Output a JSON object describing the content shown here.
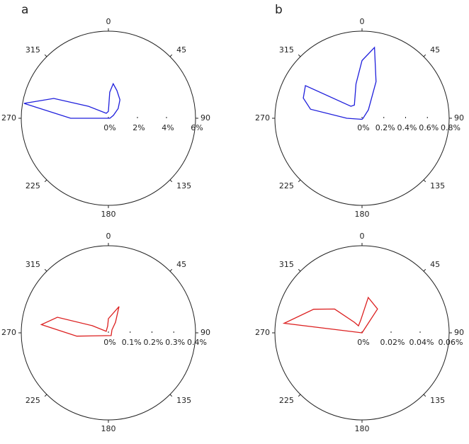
{
  "chart_data": [
    {
      "type": "polar",
      "panel_label": "a",
      "color": "#1f1fdc",
      "theta": [
        0,
        3,
        8,
        17,
        32,
        45,
        60,
        90,
        270,
        280,
        290,
        301,
        337
      ],
      "values": [
        0.48,
        1.8,
        2.4,
        2.0,
        1.5,
        0.95,
        0.4,
        0.1,
        2.6,
        5.9,
        4.0,
        1.6,
        0.37
      ],
      "rlim": [
        0,
        6
      ],
      "rticks": [
        {
          "value": 0,
          "label": "0%"
        },
        {
          "value": 2,
          "label": "2%"
        },
        {
          "value": 4,
          "label": "4%"
        },
        {
          "value": 6,
          "label": "6%"
        }
      ],
      "thetaticks": [
        0,
        45,
        90,
        135,
        180,
        225,
        270,
        315
      ]
    },
    {
      "type": "polar",
      "panel_label": "b",
      "color": "#1f1fdc",
      "theta": [
        0,
        10,
        21,
        37,
        90,
        180,
        270,
        280,
        289,
        300,
        317,
        330,
        350
      ],
      "values": [
        0.53,
        0.66,
        0.36,
        0.097,
        0.01,
        0.01,
        0.14,
        0.48,
        0.57,
        0.6,
        0.15,
        0.14,
        0.32
      ],
      "rlim": [
        0,
        0.8
      ],
      "rticks": [
        {
          "value": 0,
          "label": "0%"
        },
        {
          "value": 0.2,
          "label": "0.2%"
        },
        {
          "value": 0.4,
          "label": "0.4%"
        },
        {
          "value": 0.6,
          "label": "0.6%"
        },
        {
          "value": 0.8,
          "label": "0.8%"
        }
      ],
      "thetaticks": [
        0,
        45,
        90,
        135,
        180,
        225,
        270,
        315
      ]
    },
    {
      "type": "polar",
      "color": "#dc1f1f",
      "theta": [
        0,
        22,
        34,
        51,
        135,
        264,
        277,
        287,
        294,
        304,
        354
      ],
      "values": [
        0.065,
        0.13,
        0.058,
        0.021,
        0.018,
        0.146,
        0.31,
        0.245,
        0.081,
        0.012,
        0.032
      ],
      "rlim": [
        0,
        0.4
      ],
      "rticks": [
        {
          "value": 0,
          "label": "0%"
        },
        {
          "value": 0.1,
          "label": "0.1%"
        },
        {
          "value": 0.2,
          "label": "0.2%"
        },
        {
          "value": 0.3,
          "label": "0.3%"
        },
        {
          "value": 0.4,
          "label": "0.4%"
        }
      ],
      "thetaticks": [
        0,
        45,
        90,
        135,
        180,
        225,
        270,
        315
      ]
    },
    {
      "type": "polar",
      "color": "#dc1f1f",
      "theta": [
        10,
        33,
        90,
        180,
        270,
        277,
        296,
        311,
        324,
        333,
        354
      ],
      "values": [
        0.0247,
        0.0196,
        0,
        0,
        0,
        0.054,
        0.037,
        0.025,
        0.009,
        0.0054,
        0.0087
      ],
      "rlim": [
        0,
        0.06
      ],
      "rticks": [
        {
          "value": 0,
          "label": "0%"
        },
        {
          "value": 0.02,
          "label": "0.02%"
        },
        {
          "value": 0.04,
          "label": "0.04%"
        },
        {
          "value": 0.06,
          "label": "0.06%"
        }
      ],
      "thetaticks": [
        0,
        45,
        90,
        135,
        180,
        225,
        270,
        315
      ]
    }
  ]
}
